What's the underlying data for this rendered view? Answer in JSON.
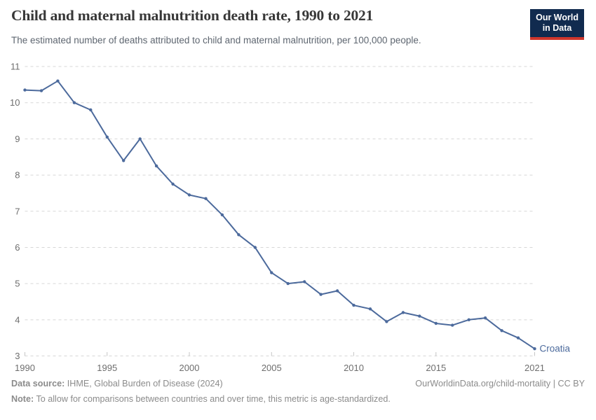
{
  "header": {
    "title": "Child and maternal malnutrition death rate, 1990 to 2021",
    "subtitle": "The estimated number of deaths attributed to child and maternal malnutrition, per 100,000 people.",
    "logo_line1": "Our World",
    "logo_line2": "in Data"
  },
  "chart_data": {
    "type": "line",
    "title": "Child and maternal malnutrition death rate, 1990 to 2021",
    "xlabel": "",
    "ylabel": "deaths per 100,000 people",
    "xlim": [
      1990,
      2021
    ],
    "ylim": [
      3,
      11
    ],
    "x_ticks": [
      1990,
      1995,
      2000,
      2005,
      2010,
      2015,
      2021
    ],
    "y_ticks": [
      3,
      4,
      5,
      6,
      7,
      8,
      9,
      10,
      11
    ],
    "grid": "horizontal-dashed",
    "legend_position": "end-of-line-label",
    "series": [
      {
        "name": "Croatia",
        "color": "#4c6a9c",
        "x": [
          1990,
          1991,
          1992,
          1993,
          1994,
          1995,
          1996,
          1997,
          1998,
          1999,
          2000,
          2001,
          2002,
          2003,
          2004,
          2005,
          2006,
          2007,
          2008,
          2009,
          2010,
          2011,
          2012,
          2013,
          2014,
          2015,
          2016,
          2017,
          2018,
          2019,
          2020,
          2021
        ],
        "values": [
          10.35,
          10.33,
          10.6,
          10.0,
          9.8,
          9.05,
          8.4,
          9.0,
          8.25,
          7.75,
          7.45,
          7.35,
          6.9,
          6.35,
          6.0,
          5.3,
          5.0,
          5.05,
          4.7,
          4.8,
          4.4,
          4.3,
          3.95,
          4.2,
          4.1,
          3.9,
          3.85,
          4.0,
          4.05,
          3.7,
          3.5,
          3.2
        ]
      }
    ]
  },
  "footer": {
    "source_label": "Data source:",
    "source_text": " IHME, Global Burden of Disease (2024)",
    "link_text": "OurWorldinData.org/child-mortality | CC BY",
    "note_label": "Note:",
    "note_text": " To allow for comparisons between countries and over time, this metric is age-standardized."
  },
  "colors": {
    "line": "#4c6a9c",
    "grid": "#d7d7d7",
    "tick": "#c6c6c6",
    "axis_text": "#6e6e6e",
    "title_text": "#373737",
    "subtitle_text": "#5e6670",
    "footer_text": "#8b8b8b",
    "logo_bg": "#112b4f",
    "logo_accent": "#d0362c"
  }
}
